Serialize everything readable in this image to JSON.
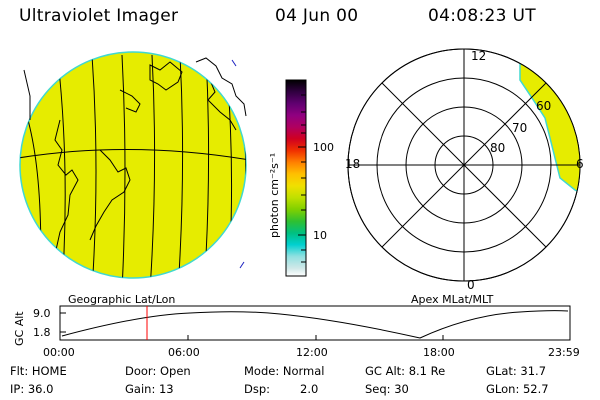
{
  "header": {
    "instrument": "Ultraviolet Imager",
    "date": "04 Jun 00",
    "time": "04:08:23 UT"
  },
  "colors": {
    "fill": "#e6ec00",
    "edge": "#40d8d0",
    "marker": "#ff0000"
  },
  "colorbar": {
    "label": "photon cm⁻²s⁻¹",
    "tick_100": "100",
    "tick_10": "10",
    "stops": [
      "#000000",
      "#300040",
      "#600070",
      "#900080",
      "#b00060",
      "#d00020",
      "#f03000",
      "#ff8000",
      "#ffc000",
      "#f0e000",
      "#c0e000",
      "#80d000",
      "#30c030",
      "#00c080",
      "#00d0d0",
      "#90e0e0",
      "#d0e8e8",
      "#ffffff"
    ]
  },
  "polar": {
    "mlt_12": "12",
    "mlt_18": "18",
    "mlt_6": "6",
    "mlt_0": "0",
    "lat_60": "60",
    "lat_70": "70",
    "lat_80": "80"
  },
  "geo_label": "Geographic Lat/Lon",
  "apex_label": "Apex MLat/MLT",
  "altitude_plot": {
    "ylabel": "GC Alt",
    "y_hi": "9.0",
    "y_lo": "1.8",
    "x_ticks": [
      "00:00",
      "06:00",
      "12:00",
      "18:00",
      "23:59"
    ],
    "marker_time": "04:08"
  },
  "footer": {
    "flt": "Flt: HOME",
    "ip": "IP: 36.0",
    "door": "Door: Open",
    "gain": "Gain: 13",
    "mode": "Mode: Normal",
    "dsp_label": "Dsp:",
    "dsp_value": "2.0",
    "gcalt": "GC Alt: 8.1 Re",
    "seq": "Seq: 30",
    "glat": "GLat: 31.7",
    "glon": "GLon: 52.7"
  }
}
